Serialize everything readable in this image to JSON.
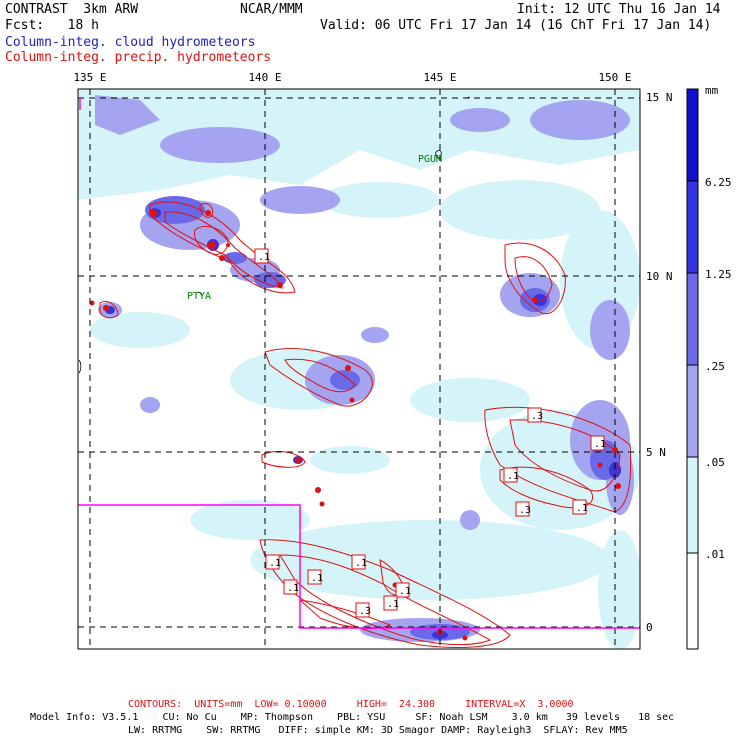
{
  "header": {
    "model": "CONTRAST  3km ARW",
    "org": "NCAR/MMM",
    "init": "Init: 12 UTC Thu 16 Jan 14",
    "fcst": "Fcst:   18 h",
    "valid": "Valid: 06 UTC Fri 17 Jan 14 (16 ChT Fri 17 Jan 14)",
    "field_blue": "Column-integ. cloud hydrometeors",
    "field_red": "Column-integ. precip. hydrometeors"
  },
  "map": {
    "lon_labels": [
      "135 E",
      "140 E",
      "145 E",
      "150 E"
    ],
    "lat_labels": [
      "15 N",
      "10 N",
      "5 N",
      "0"
    ],
    "places": [
      "PGUM",
      "PTYA"
    ],
    "contour_labels": [
      ".1",
      ".3",
      ".1",
      ".1",
      ".3",
      ".1",
      ".1",
      ".1",
      ".1",
      ".1",
      ".1",
      ".1",
      ".3"
    ]
  },
  "legend": {
    "units": "mm",
    "labels": [
      "6.25",
      "1.25",
      ".25",
      ".05",
      ".01"
    ],
    "colors": [
      "#1010d0",
      "#3535e0",
      "#6a6ae8",
      "#a4a4f0",
      "#d4f4fa",
      "#ffffff"
    ]
  },
  "footer": {
    "contours": "CONTOURS:  UNITS=mm  LOW= 0.10000     HIGH=  24.300     INTERVAL=X  3.0000",
    "line1": "Model Info: V3.5.1    CU: No Cu    MP: Thompson    PBL: YSU     SF: Noah LSM    3.0 km   39 levels   18 sec",
    "line2": "LW: RRTMG    SW: RRTMG   DIFF: simple KM: 3D Smagor DAMP: Rayleigh3  SFLAY: Rev MM5"
  },
  "colors": {
    "cloud": "#6a6ae8",
    "precip": "#e01010",
    "boundary": "#ff00ff",
    "label_green": "#008000"
  }
}
